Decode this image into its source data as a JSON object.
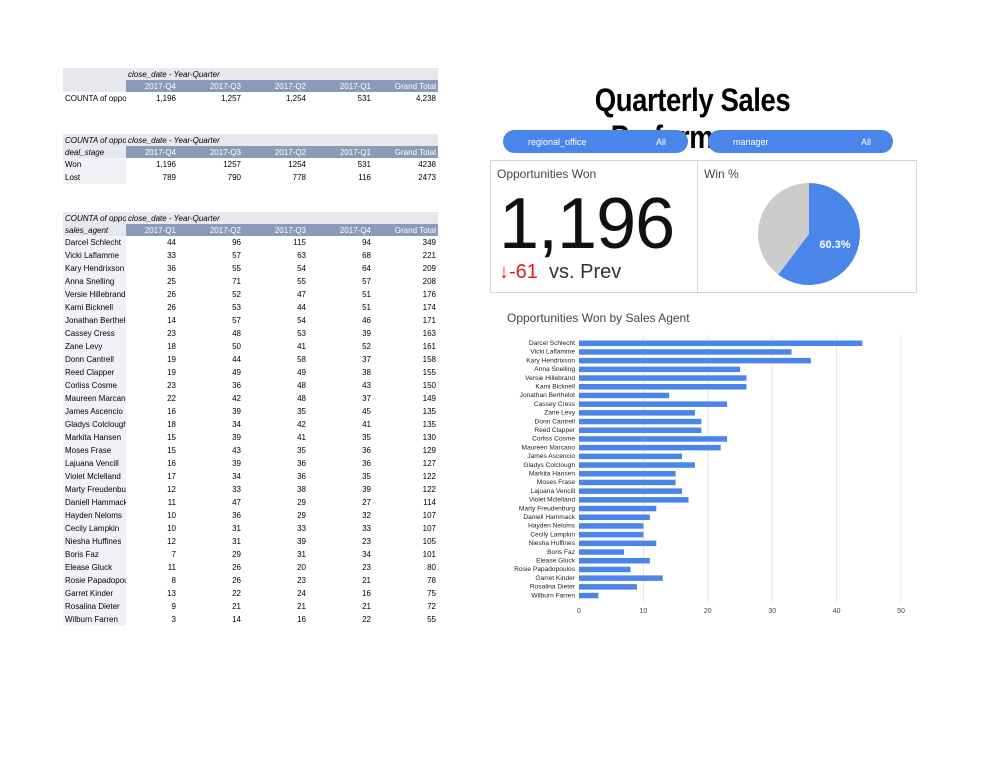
{
  "table1": {
    "dim_label": "close_date - Year-Quarter",
    "row_header": "",
    "columns": [
      "2017-Q4",
      "2017-Q3",
      "2017-Q2",
      "2017-Q1",
      "Grand Total"
    ],
    "rows": [
      {
        "label": "COUNTA of opportunity_id",
        "cells": [
          "1,196",
          "1,257",
          "1,254",
          "531",
          "4,238"
        ]
      }
    ]
  },
  "table2": {
    "corner_label": "COUNTA of opportunity_id",
    "dim_label": "close_date - Year-Quarter",
    "row_header": "deal_stage",
    "columns": [
      "2017-Q4",
      "2017-Q3",
      "2017-Q2",
      "2017-Q1",
      "Grand Total"
    ],
    "rows": [
      {
        "label": "Won",
        "cells": [
          "1,196",
          "1257",
          "1254",
          "531",
          "4238"
        ]
      },
      {
        "label": "Lost",
        "cells": [
          "789",
          "790",
          "778",
          "116",
          "2473"
        ]
      }
    ]
  },
  "table3": {
    "corner_label": "COUNTA of opportunity_id",
    "dim_label": "close_date - Year-Quarter",
    "row_header": "sales_agent",
    "columns": [
      "2017-Q1",
      "2017-Q2",
      "2017-Q3",
      "2017-Q4",
      "Grand Total"
    ],
    "rows": [
      {
        "label": "Darcel Schlecht",
        "cells": [
          "44",
          "96",
          "115",
          "94",
          "349"
        ]
      },
      {
        "label": "Vicki Laflamme",
        "cells": [
          "33",
          "57",
          "63",
          "68",
          "221"
        ]
      },
      {
        "label": "Kary Hendrixson",
        "cells": [
          "36",
          "55",
          "54",
          "64",
          "209"
        ]
      },
      {
        "label": "Anna Snelling",
        "cells": [
          "25",
          "71",
          "55",
          "57",
          "208"
        ]
      },
      {
        "label": "Versie Hillebrand",
        "cells": [
          "26",
          "52",
          "47",
          "51",
          "176"
        ]
      },
      {
        "label": "Kami Bicknell",
        "cells": [
          "26",
          "53",
          "44",
          "51",
          "174"
        ]
      },
      {
        "label": "Jonathan Berthelot",
        "cells": [
          "14",
          "57",
          "54",
          "46",
          "171"
        ]
      },
      {
        "label": "Cassey Cress",
        "cells": [
          "23",
          "48",
          "53",
          "39",
          "163"
        ]
      },
      {
        "label": "Zane Levy",
        "cells": [
          "18",
          "50",
          "41",
          "52",
          "161"
        ]
      },
      {
        "label": "Donn Cantrell",
        "cells": [
          "19",
          "44",
          "58",
          "37",
          "158"
        ]
      },
      {
        "label": "Reed Clapper",
        "cells": [
          "19",
          "49",
          "49",
          "38",
          "155"
        ]
      },
      {
        "label": "Corliss Cosme",
        "cells": [
          "23",
          "36",
          "48",
          "43",
          "150"
        ]
      },
      {
        "label": "Maureen Marcano",
        "cells": [
          "22",
          "42",
          "48",
          "37",
          "149"
        ]
      },
      {
        "label": "James Ascencio",
        "cells": [
          "16",
          "39",
          "35",
          "45",
          "135"
        ]
      },
      {
        "label": "Gladys Colclough",
        "cells": [
          "18",
          "34",
          "42",
          "41",
          "135"
        ]
      },
      {
        "label": "Markita Hansen",
        "cells": [
          "15",
          "39",
          "41",
          "35",
          "130"
        ]
      },
      {
        "label": "Moses Frase",
        "cells": [
          "15",
          "43",
          "35",
          "36",
          "129"
        ]
      },
      {
        "label": "Lajuana Vencill",
        "cells": [
          "16",
          "39",
          "36",
          "36",
          "127"
        ]
      },
      {
        "label": "Violet Mclelland",
        "cells": [
          "17",
          "34",
          "36",
          "35",
          "122"
        ]
      },
      {
        "label": "Marty Freudenburg",
        "cells": [
          "12",
          "33",
          "38",
          "39",
          "122"
        ]
      },
      {
        "label": "Daniell Hammack",
        "cells": [
          "11",
          "47",
          "29",
          "27",
          "114"
        ]
      },
      {
        "label": "Hayden Neloms",
        "cells": [
          "10",
          "36",
          "29",
          "32",
          "107"
        ]
      },
      {
        "label": "Cecily Lampkin",
        "cells": [
          "10",
          "31",
          "33",
          "33",
          "107"
        ]
      },
      {
        "label": "Niesha Huffines",
        "cells": [
          "12",
          "31",
          "39",
          "23",
          "105"
        ]
      },
      {
        "label": "Boris Faz",
        "cells": [
          "7",
          "29",
          "31",
          "34",
          "101"
        ]
      },
      {
        "label": "Elease Gluck",
        "cells": [
          "11",
          "26",
          "20",
          "23",
          "80"
        ]
      },
      {
        "label": "Rosie Papadopoulos",
        "cells": [
          "8",
          "26",
          "23",
          "21",
          "78"
        ]
      },
      {
        "label": "Garret Kinder",
        "cells": [
          "13",
          "22",
          "24",
          "16",
          "75"
        ]
      },
      {
        "label": "Rosalina Dieter",
        "cells": [
          "9",
          "21",
          "21",
          "21",
          "72"
        ]
      },
      {
        "label": "Wilburn Farren",
        "cells": [
          "3",
          "14",
          "16",
          "22",
          "55"
        ]
      }
    ]
  },
  "dashboard": {
    "title": "Quarterly Sales Performance",
    "filters": [
      {
        "label": "regional_office",
        "value": "All"
      },
      {
        "label": "manager",
        "value": "All"
      }
    ],
    "scorecard": {
      "title": "Opportunities Won",
      "value": "1,196",
      "delta_arrow": "↓",
      "delta": "-61",
      "delta_suffix": "vs. Prev"
    },
    "win_pct": {
      "title": "Win %",
      "label": "60.3%",
      "value": 60.3,
      "colors": {
        "win": "#4a85ea",
        "rest": "#cccccc"
      }
    },
    "bar_chart_title": "Opportunities Won by Sales Agent"
  },
  "chart_data": {
    "type": "bar",
    "orientation": "horizontal",
    "title": "Opportunities Won by Sales Agent",
    "categories": [
      "Darcel Schlecht",
      "Vicki Laflamme",
      "Kary Hendrixson",
      "Anna Snelling",
      "Versie Hillebrand",
      "Kami Bicknell",
      "Jonathan Berthelot",
      "Cassey Cress",
      "Zane Levy",
      "Donn Cantrell",
      "Reed Clapper",
      "Corliss Cosme",
      "Maureen Marcano",
      "James Ascencio",
      "Gladys Colclough",
      "Markita Hansen",
      "Moses Frase",
      "Lajuana Vencill",
      "Violet Mclelland",
      "Marty Freudenburg",
      "Daniell Hammack",
      "Hayden Neloms",
      "Cecily Lampkin",
      "Niesha Huffines",
      "Boris Faz",
      "Elease Gluck",
      "Rosie Papadopoulos",
      "Garret Kinder",
      "Rosalina Dieter",
      "Wilburn Farren"
    ],
    "values": [
      44,
      33,
      36,
      25,
      26,
      26,
      14,
      23,
      18,
      19,
      19,
      23,
      22,
      16,
      18,
      15,
      15,
      16,
      17,
      12,
      11,
      10,
      10,
      12,
      7,
      11,
      8,
      13,
      9,
      3
    ],
    "xticks": [
      0,
      10,
      20,
      30,
      40,
      50
    ],
    "xlim": [
      0,
      50
    ],
    "color": "#4a85ea"
  }
}
